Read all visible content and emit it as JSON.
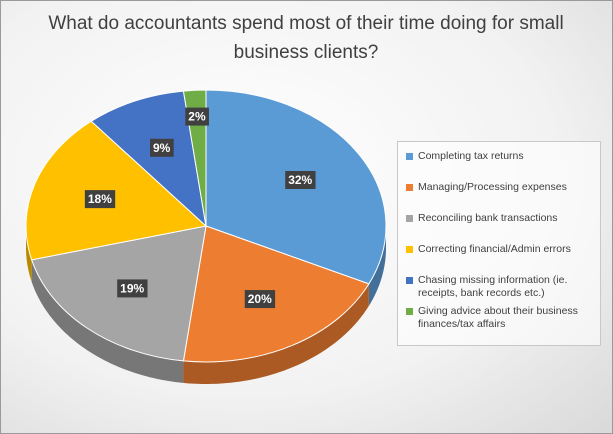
{
  "chart_data": {
    "type": "pie",
    "title": "What do accountants spend most of their time doing for small business clients?",
    "categories": [
      "Completing tax returns",
      "Managing/Processing expenses",
      "Reconciling bank transactions",
      "Correcting financial/Admin errors",
      "Chasing missing information (ie. receipts, bank records etc.)",
      "Giving advice about their business finances/tax affairs"
    ],
    "values": [
      32,
      20,
      19,
      18,
      9,
      2
    ],
    "value_labels": [
      "32%",
      "20%",
      "19%",
      "18%",
      "9%",
      "2%"
    ],
    "colors": [
      "#5b9bd5",
      "#ed7d31",
      "#a5a5a5",
      "#ffc000",
      "#4472c4",
      "#70ad47"
    ]
  }
}
